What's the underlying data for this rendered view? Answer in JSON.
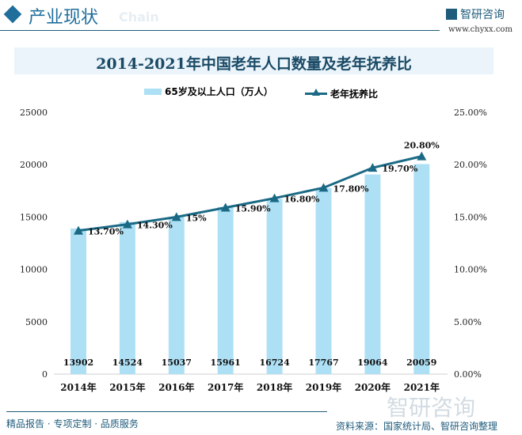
{
  "header": {
    "title": "产业现状",
    "ghost": "Chain",
    "brand": "智研咨询",
    "url": "www.chyxx.com"
  },
  "footer": {
    "source": "资料来源：国家统计局、智研咨询整理",
    "slogan": "精品报告 · 专项定制 · 品质服务",
    "watermark": "智研咨询"
  },
  "colors": {
    "bar": "#aee0f5",
    "line": "#1b6a85",
    "accent": "#1f6e9c"
  },
  "chart_data": {
    "type": "bar+line",
    "title": "2014-2021年中国老年人口数量及老年抚养比",
    "categories": [
      "2014年",
      "2015年",
      "2016年",
      "2017年",
      "2018年",
      "2019年",
      "2020年",
      "2021年"
    ],
    "series": [
      {
        "name": "65岁及以上人口（万人）",
        "type": "bar",
        "axis": "left",
        "values": [
          13902,
          14524,
          15037,
          15961,
          16724,
          17767,
          19064,
          20059
        ],
        "labels": [
          "13902",
          "14524",
          "15037",
          "15961",
          "16724",
          "17767",
          "19064",
          "20059"
        ]
      },
      {
        "name": "老年抚养比",
        "type": "line",
        "axis": "right",
        "marker": "triangle",
        "values": [
          13.7,
          14.3,
          15.0,
          15.9,
          16.8,
          17.8,
          19.7,
          20.8
        ],
        "labels": [
          "13.70%",
          "14.30%",
          "15%",
          "15.90%",
          "16.80%",
          "17.80%",
          "19.70%",
          "20.80%"
        ]
      }
    ],
    "y_left": {
      "ylim": [
        0,
        25000
      ],
      "ticks": [
        "0",
        "5000",
        "10000",
        "15000",
        "20000",
        "25000"
      ]
    },
    "y_right": {
      "ylim": [
        0,
        25
      ],
      "ticks": [
        "0.00%",
        "5.00%",
        "10.00%",
        "15.00%",
        "20.00%",
        "25.00%"
      ]
    },
    "grid": false,
    "legend": "top"
  }
}
